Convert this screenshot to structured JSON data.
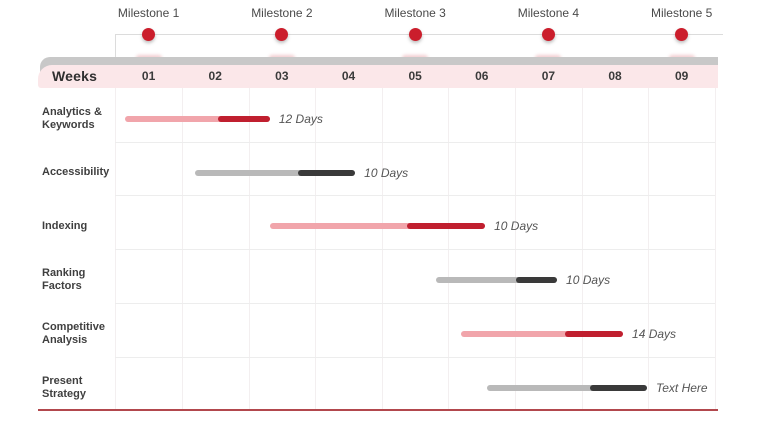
{
  "chart_data": {
    "type": "bar",
    "subtype": "gantt-timeline",
    "week_axis": {
      "label": "Weeks",
      "ticks": [
        "01",
        "02",
        "03",
        "04",
        "05",
        "06",
        "07",
        "08",
        "09"
      ],
      "num_weeks": 9
    },
    "milestones": [
      {
        "label": "Milestone 1",
        "week": 1
      },
      {
        "label": "Milestone 2",
        "week": 3
      },
      {
        "label": "Milestone 3",
        "week": 5
      },
      {
        "label": "Milestone 4",
        "week": 7
      },
      {
        "label": "Milestone 5",
        "week": 9
      }
    ],
    "tasks": [
      {
        "name_lines": [
          "Analytics &",
          "Keywords"
        ],
        "start_week": 1.15,
        "split_week": 2.54,
        "end_week": 3.32,
        "duration_label": "12 Days",
        "theme": "red"
      },
      {
        "name_lines": [
          "Accessibility"
        ],
        "start_week": 2.2,
        "split_week": 3.74,
        "end_week": 4.6,
        "duration_label": "10 Days",
        "theme": "gray"
      },
      {
        "name_lines": [
          "Indexing"
        ],
        "start_week": 3.32,
        "split_week": 5.38,
        "end_week": 6.55,
        "duration_label": "10 Days",
        "theme": "red"
      },
      {
        "name_lines": [
          "Ranking",
          "Factors"
        ],
        "start_week": 5.81,
        "split_week": 7.02,
        "end_week": 7.63,
        "duration_label": "10 Days",
        "theme": "gray"
      },
      {
        "name_lines": [
          "Competitive",
          "Analysis"
        ],
        "start_week": 6.19,
        "split_week": 7.75,
        "end_week": 8.62,
        "duration_label": "14 Days",
        "theme": "red"
      },
      {
        "name_lines": [
          "Present",
          "Strategy"
        ],
        "start_week": 6.58,
        "split_week": 8.13,
        "end_week": 8.98,
        "duration_label": "Text Here",
        "theme": "gray"
      }
    ],
    "colors": {
      "red_light": "#f1a5ab",
      "red_dark": "#c01f2f",
      "gray_light": "#b9b9b9",
      "gray_dark": "#3a3a3a",
      "milestone_dot": "#cb1e2c",
      "header_bg": "#fbe7e9",
      "header_strip": "#c8c8c8",
      "ghost_mark": "#e79ea4",
      "bottom_line": "#b2484d"
    },
    "grid": {
      "vertical_lines": true,
      "row_separators": true
    },
    "legend": null
  }
}
